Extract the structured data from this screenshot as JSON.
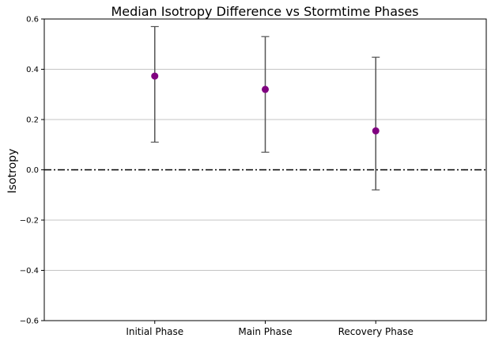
{
  "chart_data": {
    "type": "scatter",
    "title": "Median Isotropy Difference vs Stormtime Phases",
    "xlabel": "",
    "ylabel": "Isotropy",
    "categories": [
      "Initial Phase",
      "Main Phase",
      "Recovery Phase"
    ],
    "series": [
      {
        "values": [
          0.373,
          0.32,
          0.155
        ],
        "lower": [
          0.11,
          0.07,
          -0.08
        ],
        "upper": [
          0.57,
          0.53,
          0.448
        ],
        "color": "#800080"
      }
    ],
    "ylim": [
      -0.6,
      0.6
    ],
    "yticks": [
      -0.6,
      -0.4,
      -0.2,
      0.0,
      0.2,
      0.4,
      0.6
    ],
    "ytick_labels": [
      "−0.6",
      "−0.4",
      "−0.2",
      "0.0",
      "0.2",
      "0.4",
      "0.6"
    ],
    "grid": "horizontal",
    "reference_line": {
      "y": 0,
      "style": "dash-dot",
      "color": "#000000"
    },
    "errorbar_color": "#555555",
    "legend": "none"
  }
}
